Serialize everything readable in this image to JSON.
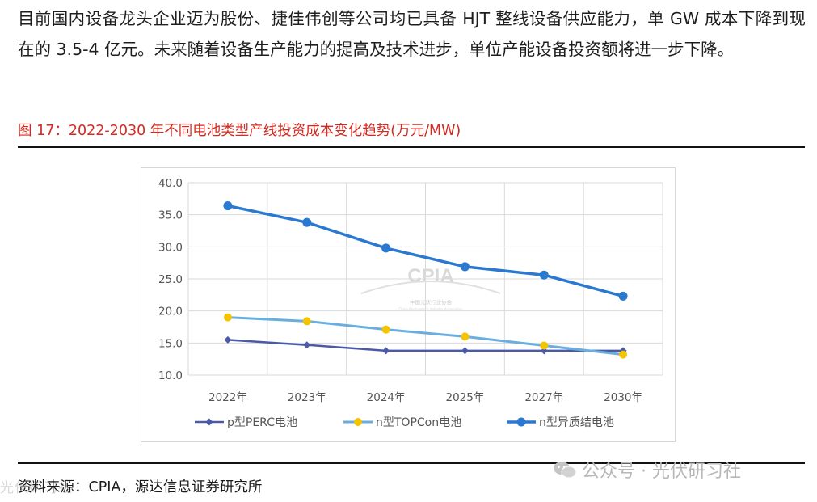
{
  "article": {
    "paragraph": "目前国内设备龙头企业迈为股份、捷佳伟创等公司均已具备 HJT 整线设备供应能力，单 GW 成本下降到现在的 3.5-4 亿元。未来随着设备生产能力的提高及技术进步，单位产能设备投资额将进一步下降。"
  },
  "figure": {
    "title": "图 17：2022-2030 年不同电池类型产线投资成本变化趋势(万元/MW)",
    "source": "资料来源：CPIA，源达信息证券研究所"
  },
  "watermark": {
    "center_main": "CPIA",
    "center_sub": "中国光伏行业协会",
    "center_en": "China Photovoltaic Industry Association",
    "right": "公众号 · 光伏研习社",
    "left": "光伏研习社"
  },
  "colors": {
    "perc": "#4a5aa8",
    "topcon": "#6aaee0",
    "hjt": "#2b78d0",
    "topcon_marker": "#f5c400",
    "title_red": "#d42a20"
  },
  "chart_data": {
    "type": "line",
    "title": "",
    "xlabel": "",
    "ylabel": "",
    "categories": [
      "2022年",
      "2023年",
      "2024年",
      "2025年",
      "2027年",
      "2030年"
    ],
    "ylim": [
      10,
      40
    ],
    "yticks": [
      "10.0",
      "15.0",
      "20.0",
      "25.0",
      "30.0",
      "35.0",
      "40.0"
    ],
    "grid": true,
    "legend_position": "bottom",
    "series": [
      {
        "name": "p型PERC电池",
        "marker": "diamond",
        "values": [
          15.5,
          14.7,
          13.8,
          13.8,
          13.8,
          13.8
        ]
      },
      {
        "name": "n型TOPCon电池",
        "marker": "circle",
        "values": [
          19.0,
          18.4,
          17.1,
          16.0,
          14.6,
          13.2
        ]
      },
      {
        "name": "n型异质结电池",
        "marker": "circle",
        "values": [
          36.4,
          33.8,
          29.8,
          26.9,
          25.6,
          22.3
        ]
      }
    ]
  }
}
